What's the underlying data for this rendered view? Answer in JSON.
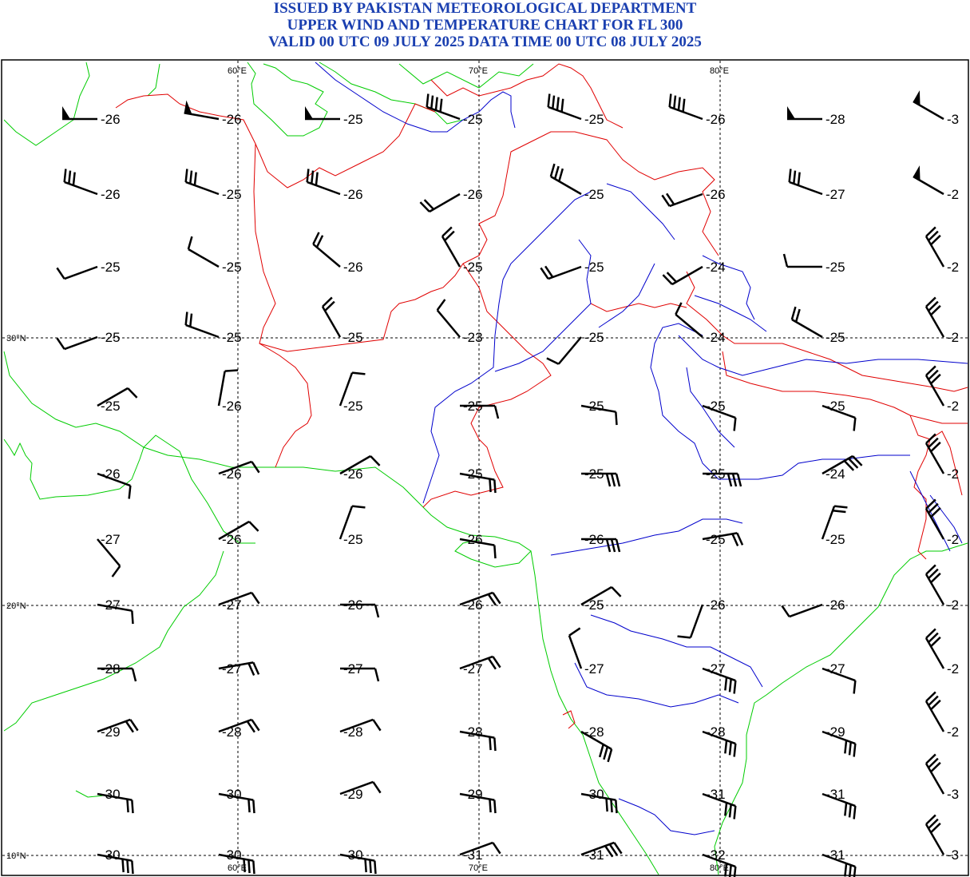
{
  "header": {
    "line1": "ISSUED BY PAKISTAN METEOROLOGICAL DEPARTMENT",
    "line2": "UPPER WIND AND TEMPERATURE CHART FOR FL 300",
    "line3": "VALID 00 UTC 09 JULY 2025 DATA TIME 00 UTC 08 JULY 2025"
  },
  "colors": {
    "title": "#1a3fb0",
    "coast": "#00cc00",
    "border": "#e00000",
    "river": "#0000cc",
    "barb": "#000000"
  },
  "grid": {
    "lon_labels": [
      "60°E",
      "70°E",
      "80°E"
    ],
    "lat_labels": [
      "30°N",
      "20°N",
      "10°N"
    ]
  },
  "stations": {
    "cols": [
      "55E",
      "60E",
      "65E",
      "70E",
      "75E",
      "80E",
      "85E",
      "90E"
    ],
    "rows": [
      "37N",
      "34N",
      "31N",
      "30N",
      "28N",
      "25N",
      "23N",
      "20N",
      "17N",
      "15N",
      "12N",
      "10N"
    ],
    "temps": [
      [
        "-26",
        "-26",
        "-25",
        "-25",
        "-25",
        "-26",
        "-28",
        "-3"
      ],
      [
        "-26",
        "-25",
        "-26",
        "-26",
        "-25",
        "-26",
        "-27",
        "-2"
      ],
      [
        "-25",
        "-25",
        "-26",
        "-25",
        "-25",
        "-24",
        "-25",
        "-2"
      ],
      [
        "-25",
        "-25",
        "-25",
        "-23",
        "-25",
        "-24",
        "-25",
        "-2"
      ],
      [
        "-25",
        "-26",
        "-25",
        "-25",
        "-25",
        "-25",
        "-25",
        "-2"
      ],
      [
        "-26",
        "-26",
        "-26",
        "-25",
        "-25",
        "-25",
        "-24",
        "-2"
      ],
      [
        "-27",
        "-26",
        "-25",
        "-26",
        "-26",
        "-25",
        "-25",
        "-2"
      ],
      [
        "-27",
        "-27",
        "-26",
        "-26",
        "-25",
        "-26",
        "-26",
        "-2"
      ],
      [
        "-28",
        "-27",
        "-27",
        "-27",
        "-27",
        "-27",
        "-27",
        "-2"
      ],
      [
        "-29",
        "-28",
        "-28",
        "-28",
        "-28",
        "-28",
        "-29",
        "-2"
      ],
      [
        "-30",
        "-30",
        "-29",
        "-29",
        "-30",
        "-31",
        "-31",
        "-3"
      ],
      [
        "-30",
        "-30",
        "-30",
        "-31",
        "-31",
        "-32",
        "-31",
        "-3"
      ]
    ]
  },
  "winds": {
    "directions_deg": [
      [
        270,
        280,
        270,
        290,
        290,
        290,
        270,
        300
      ],
      [
        290,
        290,
        290,
        240,
        300,
        250,
        290,
        300
      ],
      [
        250,
        300,
        310,
        330,
        250,
        240,
        270,
        330
      ],
      [
        250,
        290,
        330,
        320,
        220,
        310,
        300,
        330
      ],
      [
        60,
        10,
        20,
        90,
        100,
        110,
        110,
        330
      ],
      [
        110,
        70,
        60,
        100,
        90,
        90,
        60,
        330
      ],
      [
        140,
        60,
        20,
        100,
        90,
        80,
        20,
        330
      ],
      [
        100,
        70,
        90,
        70,
        60,
        200,
        250,
        330
      ],
      [
        90,
        80,
        90,
        70,
        340,
        110,
        110,
        330
      ],
      [
        70,
        70,
        70,
        100,
        120,
        110,
        110,
        330
      ],
      [
        100,
        100,
        70,
        100,
        100,
        110,
        110,
        330
      ],
      [
        100,
        100,
        100,
        70,
        70,
        110,
        110,
        330
      ]
    ],
    "speeds_kt": [
      [
        50,
        50,
        50,
        40,
        40,
        40,
        50,
        50
      ],
      [
        30,
        30,
        30,
        20,
        30,
        20,
        30,
        50
      ],
      [
        10,
        10,
        20,
        20,
        20,
        20,
        10,
        30
      ],
      [
        10,
        20,
        20,
        10,
        10,
        10,
        20,
        30
      ],
      [
        10,
        10,
        10,
        10,
        10,
        10,
        10,
        30
      ],
      [
        10,
        10,
        10,
        20,
        30,
        30,
        30,
        30
      ],
      [
        10,
        10,
        10,
        10,
        30,
        20,
        20,
        30
      ],
      [
        10,
        10,
        10,
        20,
        10,
        10,
        10,
        30
      ],
      [
        10,
        20,
        10,
        20,
        10,
        30,
        10,
        30
      ],
      [
        20,
        20,
        10,
        20,
        30,
        30,
        30,
        30
      ],
      [
        20,
        20,
        10,
        20,
        30,
        30,
        30,
        30
      ],
      [
        30,
        30,
        30,
        10,
        30,
        30,
        30,
        30
      ]
    ]
  }
}
